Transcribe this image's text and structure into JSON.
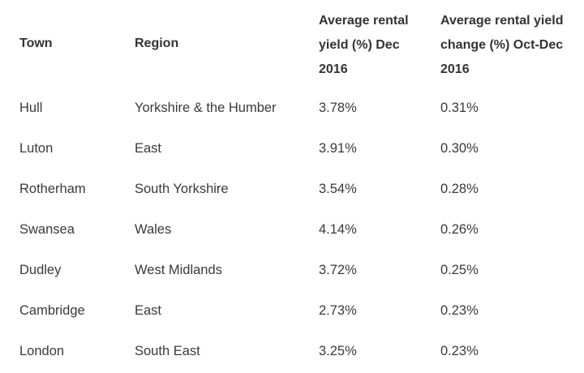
{
  "table": {
    "headers": [
      "Town",
      "Region",
      "Average rental yield (%) Dec 2016",
      "Average rental yield change (%) Oct-Dec 2016"
    ],
    "header_lines": {
      "town": "Town",
      "region": "Region",
      "yield": [
        "Average rental",
        "yield (%) Dec",
        "2016"
      ],
      "change": [
        "Average rental yield",
        "change (%) Oct-Dec",
        "2016"
      ]
    },
    "rows": [
      {
        "town": "Hull",
        "region": "Yorkshire & the Humber",
        "yield": "3.78%",
        "change": "0.31%"
      },
      {
        "town": "Luton",
        "region": "East",
        "yield": "3.91%",
        "change": "0.30%"
      },
      {
        "town": "Rotherham",
        "region": "South Yorkshire",
        "yield": "3.54%",
        "change": "0.28%"
      },
      {
        "town": "Swansea",
        "region": "Wales",
        "yield": "4.14%",
        "change": "0.26%"
      },
      {
        "town": "Dudley",
        "region": "West Midlands",
        "yield": "3.72%",
        "change": "0.25%"
      },
      {
        "town": "Cambridge",
        "region": "East",
        "yield": "2.73%",
        "change": "0.23%"
      },
      {
        "town": "London",
        "region": "South East",
        "yield": "3.25%",
        "change": "0.23%"
      }
    ]
  },
  "colors": {
    "background": "#ffffff",
    "text": "#333333"
  }
}
